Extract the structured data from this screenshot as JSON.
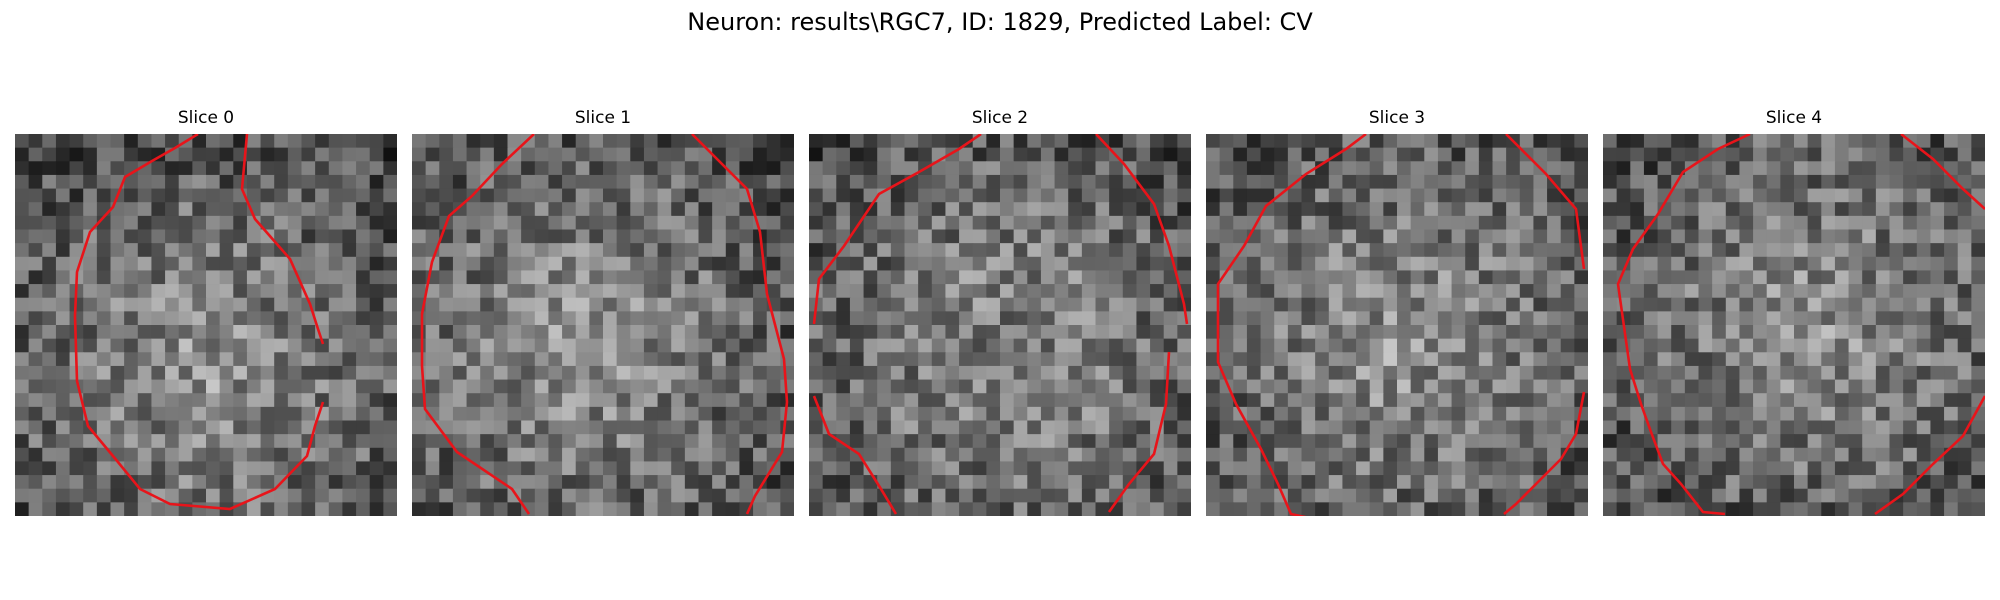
{
  "figure": {
    "title": "Neuron: results\\RGC7, ID: 1829, Predicted Label: CV"
  },
  "slices": [
    {
      "label": "Slice 0"
    },
    {
      "label": "Slice 1"
    },
    {
      "label": "Slice 2"
    },
    {
      "label": "Slice 3"
    },
    {
      "label": "Slice 4"
    }
  ],
  "colors": {
    "contour": "#e8141a",
    "background": "#ffffff"
  }
}
